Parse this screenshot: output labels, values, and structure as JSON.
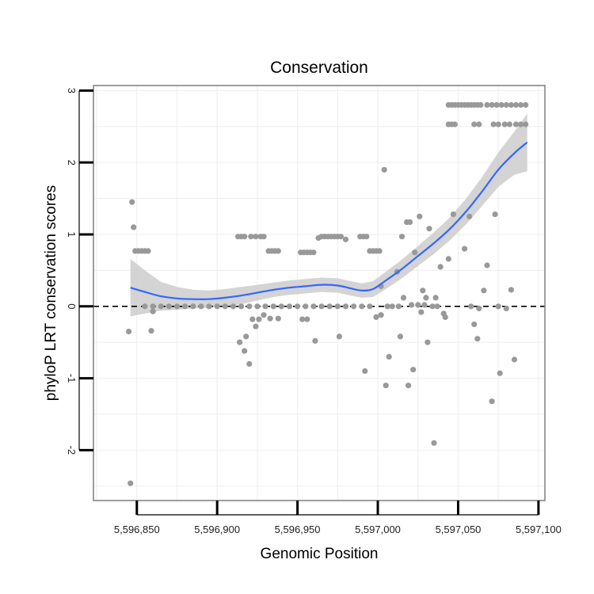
{
  "chart_data": {
    "type": "scatter",
    "title": "Conservation",
    "xlabel": "Genomic Position",
    "ylabel": "phyloP LRT conservation scores",
    "xlim": [
      5596823,
      5597104
    ],
    "ylim": [
      -2.7,
      3.07
    ],
    "x_ticks": [
      {
        "value": 5596850,
        "label": "5,596,850"
      },
      {
        "value": 5596900,
        "label": "5,596,900"
      },
      {
        "value": 5596950,
        "label": "5,596,950"
      },
      {
        "value": 5597000,
        "label": "5,597,000"
      },
      {
        "value": 5597050,
        "label": "5,597,050"
      },
      {
        "value": 5597100,
        "label": "5,597,100"
      }
    ],
    "y_ticks": [
      {
        "value": -2,
        "label": "-2"
      },
      {
        "value": -1,
        "label": "-1"
      },
      {
        "value": 0,
        "label": "0"
      },
      {
        "value": 1,
        "label": "1"
      },
      {
        "value": 2,
        "label": "2"
      },
      {
        "value": 3,
        "label": "3"
      }
    ],
    "grid": true,
    "reference_line": {
      "y": 0,
      "style": "dashed",
      "color": "#000000"
    },
    "colors": {
      "points": "#999999",
      "smooth": "#3366ff",
      "band": "#cccccc",
      "panel_border": "#7f7f7f",
      "grid": "#f0f0f0"
    },
    "series": [
      {
        "name": "scores",
        "points": [
          [
            5596846,
            -2.46
          ],
          [
            5596845,
            -0.35
          ],
          [
            5596847,
            1.45
          ],
          [
            5596848,
            1.1
          ],
          [
            5596849,
            0.77
          ],
          [
            5596851,
            0.77
          ],
          [
            5596853,
            0.77
          ],
          [
            5596855,
            0.77
          ],
          [
            5596857,
            0.77
          ],
          [
            5596859,
            -0.34
          ],
          [
            5596860,
            -0.07
          ],
          [
            5596855,
            0.0
          ],
          [
            5596860,
            0.0
          ],
          [
            5596865,
            0.0
          ],
          [
            5596870,
            0.0
          ],
          [
            5596875,
            0.0
          ],
          [
            5596880,
            0.0
          ],
          [
            5596885,
            0.0
          ],
          [
            5596890,
            0.0
          ],
          [
            5596895,
            0.0
          ],
          [
            5596900,
            0.0
          ],
          [
            5596905,
            0.0
          ],
          [
            5596910,
            0.0
          ],
          [
            5596913,
            0.97
          ],
          [
            5596915,
            0.97
          ],
          [
            5596917,
            0.97
          ],
          [
            5596921,
            0.97
          ],
          [
            5596924,
            0.97
          ],
          [
            5596927,
            0.97
          ],
          [
            5596929,
            0.97
          ],
          [
            5596932,
            0.77
          ],
          [
            5596934,
            0.77
          ],
          [
            5596936,
            0.77
          ],
          [
            5596938,
            0.77
          ],
          [
            5596914,
            -0.5
          ],
          [
            5596917,
            -0.62
          ],
          [
            5596918,
            -0.42
          ],
          [
            5596920,
            -0.8
          ],
          [
            5596922,
            -0.18
          ],
          [
            5596924,
            -0.28
          ],
          [
            5596926,
            -0.18
          ],
          [
            5596929,
            -0.12
          ],
          [
            5596933,
            -0.17
          ],
          [
            5596938,
            -0.17
          ],
          [
            5596915,
            0.0
          ],
          [
            5596920,
            0.0
          ],
          [
            5596925,
            0.0
          ],
          [
            5596930,
            0.0
          ],
          [
            5596935,
            0.0
          ],
          [
            5596940,
            0.0
          ],
          [
            5596945,
            0.0
          ],
          [
            5596950,
            0.0
          ],
          [
            5596955,
            0.0
          ],
          [
            5596952,
            0.75
          ],
          [
            5596954,
            0.75
          ],
          [
            5596956,
            0.75
          ],
          [
            5596958,
            0.75
          ],
          [
            5596960,
            0.75
          ],
          [
            5596953,
            -0.18
          ],
          [
            5596956,
            -0.18
          ],
          [
            5596961,
            -0.48
          ],
          [
            5596963,
            0.95
          ],
          [
            5596965,
            0.97
          ],
          [
            5596967,
            0.97
          ],
          [
            5596969,
            0.97
          ],
          [
            5596971,
            0.97
          ],
          [
            5596973,
            0.97
          ],
          [
            5596975,
            0.97
          ],
          [
            5596977,
            0.97
          ],
          [
            5596980,
            0.93
          ],
          [
            5596976,
            -0.42
          ],
          [
            5596960,
            0.0
          ],
          [
            5596965,
            0.0
          ],
          [
            5596970,
            0.0
          ],
          [
            5596975,
            0.0
          ],
          [
            5596980,
            0.0
          ],
          [
            5596985,
            0.0
          ],
          [
            5596990,
            0.0
          ],
          [
            5596995,
            0.0
          ],
          [
            5596989,
            0.97
          ],
          [
            5596991,
            0.97
          ],
          [
            5596993,
            0.97
          ],
          [
            5596995,
            0.77
          ],
          [
            5596997,
            0.77
          ],
          [
            5596999,
            0.77
          ],
          [
            5597001,
            0.77
          ],
          [
            5596992,
            -0.9
          ],
          [
            5596999,
            -0.15
          ],
          [
            5597002,
            -0.12
          ],
          [
            5597002,
            0.28
          ],
          [
            5597004,
            1.9
          ],
          [
            5597005,
            -1.1
          ],
          [
            5597007,
            -0.7
          ],
          [
            5597006,
            0.0
          ],
          [
            5597009,
            0.0
          ],
          [
            5597012,
            0.48
          ],
          [
            5597013,
            0.0
          ],
          [
            5597014,
            -0.42
          ],
          [
            5597015,
            0.97
          ],
          [
            5597016,
            0.12
          ],
          [
            5597018,
            1.17
          ],
          [
            5597019,
            -1.1
          ],
          [
            5597020,
            1.17
          ],
          [
            5597021,
            0.02
          ],
          [
            5597022,
            -0.88
          ],
          [
            5597023,
            0.75
          ],
          [
            5597025,
            0.02
          ],
          [
            5597026,
            1.25
          ],
          [
            5597027,
            -0.08
          ],
          [
            5597028,
            0.22
          ],
          [
            5597029,
            0.02
          ],
          [
            5597030,
            0.12
          ],
          [
            5597031,
            -0.5
          ],
          [
            5597032,
            1.08
          ],
          [
            5597034,
            0.0
          ],
          [
            5597035,
            -1.9
          ],
          [
            5597036,
            0.12
          ],
          [
            5597037,
            0.0
          ],
          [
            5597039,
            0.55
          ],
          [
            5597041,
            -0.1
          ],
          [
            5597042,
            -0.15
          ],
          [
            5597044,
            0.66
          ],
          [
            5597047,
            1.28
          ],
          [
            5597044,
            2.8
          ],
          [
            5597046,
            2.8
          ],
          [
            5597048,
            2.8
          ],
          [
            5597050,
            2.8
          ],
          [
            5597052,
            2.8
          ],
          [
            5597054,
            2.8
          ],
          [
            5597056,
            2.8
          ],
          [
            5597058,
            2.8
          ],
          [
            5597060,
            2.8
          ],
          [
            5597062,
            2.8
          ],
          [
            5597064,
            2.8
          ],
          [
            5597068,
            2.8
          ],
          [
            5597071,
            2.8
          ],
          [
            5597074,
            2.8
          ],
          [
            5597077,
            2.8
          ],
          [
            5597080,
            2.8
          ],
          [
            5597083,
            2.8
          ],
          [
            5597086,
            2.8
          ],
          [
            5597089,
            2.8
          ],
          [
            5597092,
            2.8
          ],
          [
            5597044,
            2.53
          ],
          [
            5597046,
            2.53
          ],
          [
            5597048,
            2.53
          ],
          [
            5597060,
            2.53
          ],
          [
            5597063,
            2.53
          ],
          [
            5597072,
            2.53
          ],
          [
            5597075,
            2.53
          ],
          [
            5597079,
            2.53
          ],
          [
            5597082,
            2.53
          ],
          [
            5597086,
            2.53
          ],
          [
            5597089,
            2.53
          ],
          [
            5597092,
            2.53
          ],
          [
            5597054,
            0.8
          ],
          [
            5597057,
            1.25
          ],
          [
            5597060,
            -0.25
          ],
          [
            5597062,
            -0.45
          ],
          [
            5597063,
            -0.03
          ],
          [
            5597066,
            0.22
          ],
          [
            5597068,
            0.57
          ],
          [
            5597071,
            -1.32
          ],
          [
            5597073,
            1.28
          ],
          [
            5597076,
            -0.93
          ],
          [
            5597080,
            -0.03
          ],
          [
            5597083,
            0.23
          ],
          [
            5597085,
            -0.74
          ],
          [
            5597058,
            0.0
          ],
          [
            5597075,
            0.0
          ]
        ]
      }
    ],
    "smooth": {
      "method": "loess",
      "fit": [
        [
          5596846,
          0.26
        ],
        [
          5596855,
          0.2
        ],
        [
          5596865,
          0.14
        ],
        [
          5596875,
          0.11
        ],
        [
          5596885,
          0.1
        ],
        [
          5596895,
          0.1
        ],
        [
          5596905,
          0.12
        ],
        [
          5596915,
          0.15
        ],
        [
          5596925,
          0.19
        ],
        [
          5596935,
          0.23
        ],
        [
          5596945,
          0.26
        ],
        [
          5596955,
          0.28
        ],
        [
          5596965,
          0.3
        ],
        [
          5596975,
          0.29
        ],
        [
          5596983,
          0.25
        ],
        [
          5596990,
          0.22
        ],
        [
          5596997,
          0.24
        ],
        [
          5597005,
          0.36
        ],
        [
          5597015,
          0.52
        ],
        [
          5597025,
          0.7
        ],
        [
          5597035,
          0.88
        ],
        [
          5597045,
          1.08
        ],
        [
          5597055,
          1.32
        ],
        [
          5597065,
          1.6
        ],
        [
          5597075,
          1.9
        ],
        [
          5597085,
          2.13
        ],
        [
          5597093,
          2.28
        ]
      ],
      "band_halfwidth": [
        [
          5596846,
          0.4
        ],
        [
          5596855,
          0.3
        ],
        [
          5596865,
          0.2
        ],
        [
          5596875,
          0.16
        ],
        [
          5596885,
          0.13
        ],
        [
          5596895,
          0.12
        ],
        [
          5596905,
          0.12
        ],
        [
          5596915,
          0.12
        ],
        [
          5596925,
          0.11
        ],
        [
          5596935,
          0.1
        ],
        [
          5596945,
          0.1
        ],
        [
          5596955,
          0.1
        ],
        [
          5596965,
          0.1
        ],
        [
          5596975,
          0.1
        ],
        [
          5596983,
          0.1
        ],
        [
          5596990,
          0.1
        ],
        [
          5596997,
          0.11
        ],
        [
          5597005,
          0.12
        ],
        [
          5597015,
          0.13
        ],
        [
          5597025,
          0.14
        ],
        [
          5597035,
          0.15
        ],
        [
          5597045,
          0.16
        ],
        [
          5597055,
          0.18
        ],
        [
          5597065,
          0.2
        ],
        [
          5597075,
          0.24
        ],
        [
          5597085,
          0.3
        ],
        [
          5597093,
          0.4
        ]
      ]
    }
  }
}
